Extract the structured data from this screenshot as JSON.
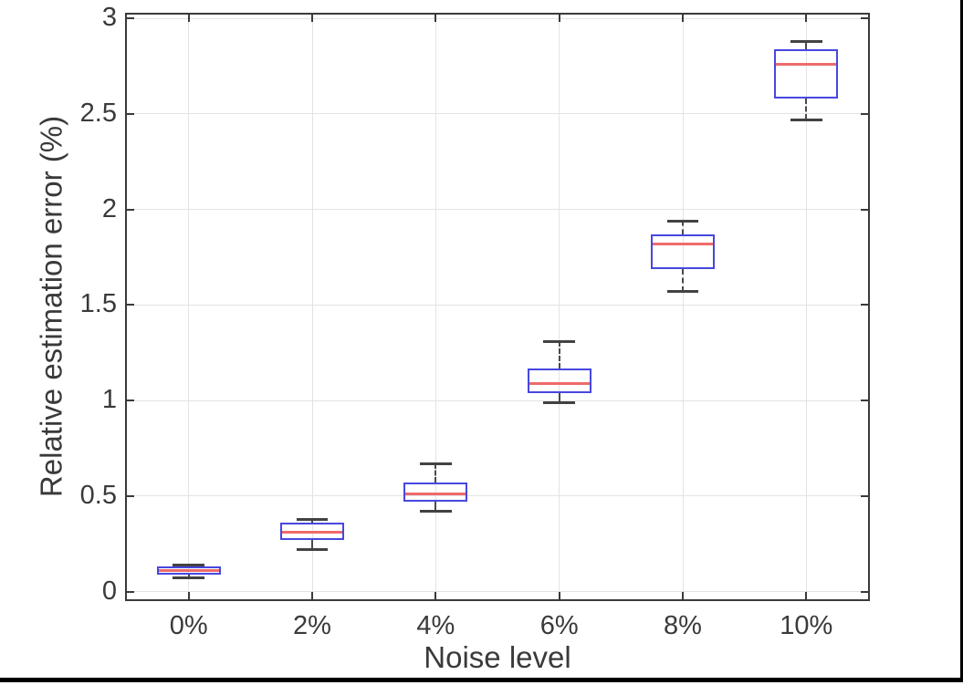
{
  "figure": {
    "background": "#ffffff",
    "frame_color": "#000000"
  },
  "chart_data": {
    "type": "boxplot",
    "title": "",
    "xlabel": "Noise level",
    "ylabel": "Relative estimation error (%)",
    "categories": [
      "0%",
      "2%",
      "4%",
      "6%",
      "8%",
      "10%"
    ],
    "y_ticks": [
      0,
      0.5,
      1,
      1.5,
      2,
      2.5,
      3
    ],
    "y_tick_labels": [
      "0",
      "0.5",
      "1",
      "1.5",
      "2",
      "2.5",
      "3"
    ],
    "ylim": [
      -0.04,
      3.02
    ],
    "grid": true,
    "legend": null,
    "boxes": [
      {
        "category": "0%",
        "whisker_low": 0.07,
        "q1": 0.09,
        "median": 0.11,
        "q3": 0.13,
        "whisker_high": 0.14
      },
      {
        "category": "2%",
        "whisker_low": 0.22,
        "q1": 0.27,
        "median": 0.31,
        "q3": 0.36,
        "whisker_high": 0.38
      },
      {
        "category": "4%",
        "whisker_low": 0.42,
        "q1": 0.47,
        "median": 0.51,
        "q3": 0.57,
        "whisker_high": 0.67
      },
      {
        "category": "6%",
        "whisker_low": 0.99,
        "q1": 1.04,
        "median": 1.09,
        "q3": 1.17,
        "whisker_high": 1.31
      },
      {
        "category": "8%",
        "whisker_low": 1.57,
        "q1": 1.69,
        "median": 1.82,
        "q3": 1.87,
        "whisker_high": 1.94
      },
      {
        "category": "10%",
        "whisker_low": 2.47,
        "q1": 2.58,
        "median": 2.76,
        "q3": 2.84,
        "whisker_high": 2.88
      }
    ],
    "style": {
      "box_edge_color": "#4747e0",
      "median_color": "#ee6b6b",
      "whisker_color": "#4a4a4a",
      "cap_color": "#424242",
      "grid_color": "#e3e3e3",
      "axis_color": "#3a3a3a",
      "text_color": "#3a3a3a",
      "box_width_pct": 8.6,
      "cap_width_pct": 4.3
    }
  }
}
